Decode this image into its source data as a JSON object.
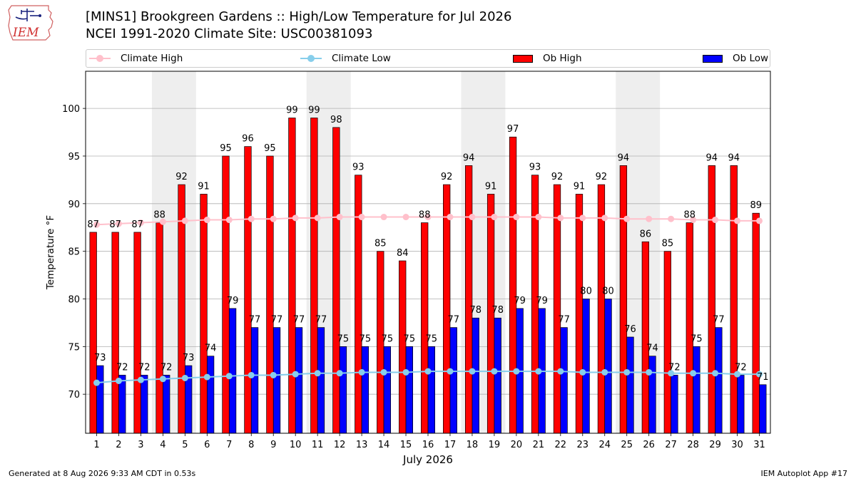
{
  "header": {
    "title_line1": "[MINS1] Brookgreen Gardens :: High/Low Temperature for Jul 2026",
    "title_line2": "NCEI 1991-2020 Climate Site: USC00381093",
    "logo_text": "IEM"
  },
  "legend": [
    {
      "label": "Climate High",
      "color": "#ffc0cb",
      "kind": "line"
    },
    {
      "label": "Climate Low",
      "color": "#87ceeb",
      "kind": "line"
    },
    {
      "label": "Ob High",
      "color": "#ff0000",
      "kind": "bar"
    },
    {
      "label": "Ob Low",
      "color": "#0000ff",
      "kind": "bar"
    }
  ],
  "footer": {
    "generated": "Generated at 8 Aug 2026 9:33 AM CDT in 0.53s",
    "app": "IEM Autoplot App #17"
  },
  "chart_data": {
    "type": "bar",
    "title": "[MINS1] Brookgreen Gardens :: High/Low Temperature for Jul 2026",
    "subtitle": "NCEI 1991-2020 Climate Site: USC00381093",
    "xlabel": "July 2026",
    "ylabel": "Temperature °F",
    "ylim": [
      65.9,
      103.9
    ],
    "yticks": [
      70,
      75,
      80,
      85,
      90,
      95,
      100
    ],
    "grid": "horizontal",
    "legend_position": "top",
    "weekend_shading": [
      [
        4,
        5
      ],
      [
        11,
        12
      ],
      [
        18,
        19
      ],
      [
        25,
        26
      ]
    ],
    "categories": [
      1,
      2,
      3,
      4,
      5,
      6,
      7,
      8,
      9,
      10,
      11,
      12,
      13,
      14,
      15,
      16,
      17,
      18,
      19,
      20,
      21,
      22,
      23,
      24,
      25,
      26,
      27,
      28,
      29,
      30,
      31
    ],
    "series": [
      {
        "name": "Ob High",
        "type": "bar",
        "color": "#ff0000",
        "values": [
          87,
          87,
          87,
          88,
          92,
          91,
          95,
          96,
          95,
          99,
          99,
          98,
          93,
          85,
          84,
          88,
          92,
          94,
          91,
          97,
          93,
          92,
          91,
          92,
          94,
          86,
          85,
          88,
          94,
          94,
          89
        ]
      },
      {
        "name": "Ob Low",
        "type": "bar",
        "color": "#0000ff",
        "values": [
          73,
          72,
          72,
          72,
          73,
          74,
          79,
          77,
          77,
          77,
          77,
          75,
          75,
          75,
          75,
          75,
          77,
          78,
          78,
          79,
          79,
          77,
          80,
          80,
          76,
          74,
          72,
          75,
          77,
          72,
          71
        ]
      },
      {
        "name": "Climate High",
        "type": "line",
        "color": "#ffc0cb",
        "values": [
          87.8,
          87.9,
          88.0,
          88.1,
          88.2,
          88.3,
          88.3,
          88.4,
          88.4,
          88.5,
          88.5,
          88.6,
          88.6,
          88.6,
          88.6,
          88.6,
          88.6,
          88.6,
          88.6,
          88.6,
          88.6,
          88.5,
          88.5,
          88.5,
          88.4,
          88.4,
          88.4,
          88.3,
          88.3,
          88.2,
          88.2
        ]
      },
      {
        "name": "Climate Low",
        "type": "line",
        "color": "#87ceeb",
        "values": [
          71.2,
          71.4,
          71.5,
          71.6,
          71.7,
          71.8,
          71.9,
          72.0,
          72.0,
          72.1,
          72.2,
          72.2,
          72.3,
          72.3,
          72.3,
          72.4,
          72.4,
          72.4,
          72.4,
          72.4,
          72.4,
          72.4,
          72.3,
          72.3,
          72.3,
          72.3,
          72.2,
          72.2,
          72.2,
          72.1,
          72.1
        ]
      }
    ]
  }
}
